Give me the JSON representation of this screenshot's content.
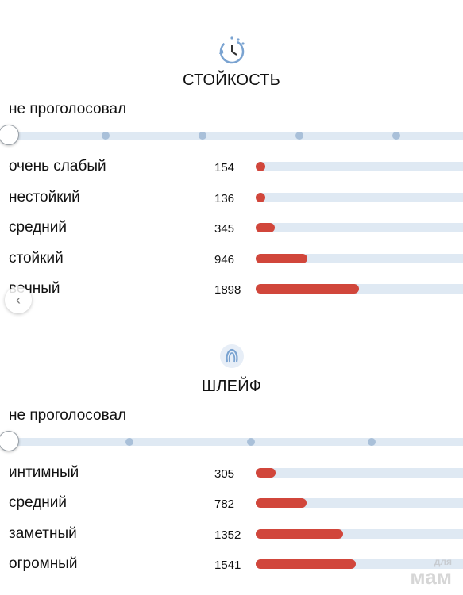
{
  "colors": {
    "accent": "#d1463b",
    "track": "#dfe9f3",
    "icon_blue": "#5b8fc7"
  },
  "longevity": {
    "icon": "clock-timer-icon",
    "title": "СТОЙКОСТЬ",
    "not_voted": "не проголосовал",
    "max_votes": 3800,
    "options": [
      {
        "label": "очень слабый",
        "count": "154",
        "value": 154
      },
      {
        "label": "нестойкий",
        "count": "136",
        "value": 136
      },
      {
        "label": "средний",
        "count": "345",
        "value": 345
      },
      {
        "label": "стойкий",
        "count": "946",
        "value": 946
      },
      {
        "label": "вечный",
        "count": "1898",
        "value": 1898
      }
    ]
  },
  "sillage": {
    "icon": "sillage-wave-icon",
    "title": "ШЛЕЙФ",
    "not_voted": "не проголосовал",
    "max_votes": 3200,
    "options": [
      {
        "label": "интимный",
        "count": "305",
        "value": 305
      },
      {
        "label": "средний",
        "count": "782",
        "value": 782
      },
      {
        "label": "заметный",
        "count": "1352",
        "value": 1352
      },
      {
        "label": "огромный",
        "count": "1541",
        "value": 1541
      }
    ]
  },
  "watermark": {
    "line1": "для",
    "line2": "мам"
  }
}
